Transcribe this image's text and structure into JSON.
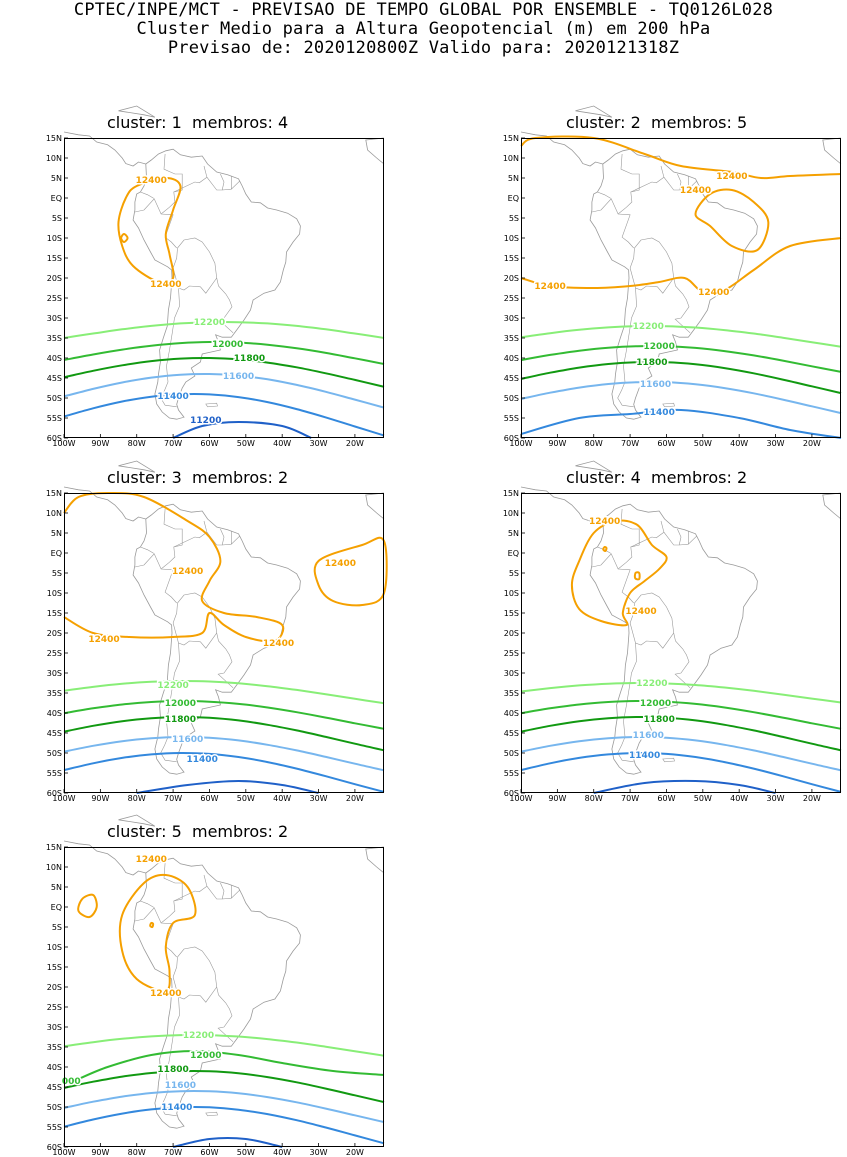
{
  "header": {
    "line1": "CPTEC/INPE/MCT - PREVISAO DE TEMPO GLOBAL POR ENSEMBLE - TQ0126L028",
    "line2": "Cluster Medio para a Altura Geopotencial (m) em 200 hPa",
    "line3": "Previsao de: 2020120800Z    Valido para: 2020121318Z"
  },
  "colors": {
    "c12400": "#f5a000",
    "c12200": "#88ee77",
    "c12000": "#33bb33",
    "c11800": "#119911",
    "c11600": "#77b6ee",
    "c11400": "#3388dd",
    "c11200": "#1f60c8",
    "coast": "#9a9a9a",
    "frame": "#000000"
  },
  "axes": {
    "lat_labels": [
      "15N",
      "10N",
      "5N",
      "EQ",
      "5S",
      "10S",
      "15S",
      "20S",
      "25S",
      "30S",
      "35S",
      "40S",
      "45S",
      "50S",
      "55S",
      "60S"
    ],
    "lon_labels": [
      "100W",
      "90W",
      "80W",
      "70W",
      "60W",
      "50W",
      "40W",
      "30W",
      "20W"
    ]
  },
  "panels": [
    {
      "cluster_label": "cluster:",
      "cluster": "1",
      "members_label": "membros:",
      "members": "4",
      "contours": [
        {
          "value": "12400",
          "color": "c12400",
          "labels": [
            {
              "text": "12400",
              "lon": -76,
              "lat": 4.5
            },
            {
              "text": "12400",
              "lon": -72,
              "lat": -21.5
            }
          ]
        },
        {
          "value": "12200",
          "color": "c12200",
          "labels": [
            {
              "text": "12200",
              "lon": -60,
              "lat": -31
            }
          ]
        },
        {
          "value": "12000",
          "color": "c12000",
          "labels": [
            {
              "text": "12000",
              "lon": -55,
              "lat": -36.5
            }
          ]
        },
        {
          "value": "11800",
          "color": "c11800",
          "labels": [
            {
              "text": "11800",
              "lon": -49,
              "lat": -40
            }
          ]
        },
        {
          "value": "11600",
          "color": "c11600",
          "labels": [
            {
              "text": "11600",
              "lon": -52,
              "lat": -44.5
            }
          ]
        },
        {
          "value": "11400",
          "color": "c11400",
          "labels": [
            {
              "text": "11400",
              "lon": -70,
              "lat": -49.5
            }
          ]
        },
        {
          "value": "11200",
          "color": "c11200",
          "labels": [
            {
              "text": "11200",
              "lon": -61,
              "lat": -55.5
            }
          ]
        }
      ]
    },
    {
      "cluster_label": "cluster:",
      "cluster": "2",
      "members_label": "membros:",
      "members": "5",
      "contours": [
        {
          "value": "12400",
          "color": "c12400",
          "labels": [
            {
              "text": "12400",
              "lon": -42,
              "lat": 5.5
            },
            {
              "text": "12400",
              "lon": -52,
              "lat": 2
            },
            {
              "text": "12400",
              "lon": -92,
              "lat": -22
            },
            {
              "text": "12400",
              "lon": -47,
              "lat": -23.5
            }
          ]
        },
        {
          "value": "12200",
          "color": "c12200",
          "labels": [
            {
              "text": "12200",
              "lon": -65,
              "lat": -32
            }
          ]
        },
        {
          "value": "12000",
          "color": "c12000",
          "labels": [
            {
              "text": "12000",
              "lon": -62,
              "lat": -37
            }
          ]
        },
        {
          "value": "11800",
          "color": "c11800",
          "labels": [
            {
              "text": "11800",
              "lon": -64,
              "lat": -41
            }
          ]
        },
        {
          "value": "11600",
          "color": "c11600",
          "labels": [
            {
              "text": "11600",
              "lon": -63,
              "lat": -46.5
            }
          ]
        },
        {
          "value": "11400",
          "color": "c11400",
          "labels": [
            {
              "text": "11400",
              "lon": -62,
              "lat": -53.5
            }
          ]
        }
      ]
    },
    {
      "cluster_label": "cluster:",
      "cluster": "3",
      "members_label": "membros:",
      "members": "2",
      "contours": [
        {
          "value": "12400",
          "color": "c12400",
          "labels": [
            {
              "text": "12400",
              "lon": -66,
              "lat": -4.5
            },
            {
              "text": "12400",
              "lon": -24,
              "lat": -2.5
            },
            {
              "text": "12400",
              "lon": -89,
              "lat": -21.5
            },
            {
              "text": "12400",
              "lon": -41,
              "lat": -22.5
            }
          ]
        },
        {
          "value": "12200",
          "color": "c12200",
          "labels": [
            {
              "text": "12200",
              "lon": -70,
              "lat": -33
            }
          ]
        },
        {
          "value": "12000",
          "color": "c12000",
          "labels": [
            {
              "text": "12000",
              "lon": -68,
              "lat": -37.5
            }
          ]
        },
        {
          "value": "11800",
          "color": "c11800",
          "labels": [
            {
              "text": "11800",
              "lon": -68,
              "lat": -41.5
            }
          ]
        },
        {
          "value": "11600",
          "color": "c11600",
          "labels": [
            {
              "text": "11600",
              "lon": -66,
              "lat": -46.5
            }
          ]
        },
        {
          "value": "11400",
          "color": "c11400",
          "labels": [
            {
              "text": "11400",
              "lon": -62,
              "lat": -51.5
            }
          ]
        }
      ]
    },
    {
      "cluster_label": "cluster:",
      "cluster": "4",
      "members_label": "membros:",
      "members": "2",
      "contours": [
        {
          "value": "12400",
          "color": "c12400",
          "labels": [
            {
              "text": "12400",
              "lon": -77,
              "lat": 8
            },
            {
              "text": "12400",
              "lon": -67,
              "lat": -14.5
            }
          ]
        },
        {
          "value": "12200",
          "color": "c12200",
          "labels": [
            {
              "text": "12200",
              "lon": -64,
              "lat": -32.5
            }
          ]
        },
        {
          "value": "12000",
          "color": "c12000",
          "labels": [
            {
              "text": "12000",
              "lon": -63,
              "lat": -37.5
            }
          ]
        },
        {
          "value": "11800",
          "color": "c11800",
          "labels": [
            {
              "text": "11800",
              "lon": -62,
              "lat": -41.5
            }
          ]
        },
        {
          "value": "11600",
          "color": "c11600",
          "labels": [
            {
              "text": "11600",
              "lon": -65,
              "lat": -45.5
            }
          ]
        },
        {
          "value": "11400",
          "color": "c11400",
          "labels": [
            {
              "text": "11400",
              "lon": -66,
              "lat": -50.5
            }
          ]
        }
      ]
    },
    {
      "cluster_label": "cluster:",
      "cluster": "5",
      "members_label": "membros:",
      "members": "2",
      "contours": [
        {
          "value": "12400",
          "color": "c12400",
          "labels": [
            {
              "text": "12400",
              "lon": -76,
              "lat": 12
            },
            {
              "text": "12400",
              "lon": -72,
              "lat": -21.5
            }
          ]
        },
        {
          "value": "12200",
          "color": "c12200",
          "labels": [
            {
              "text": "12200",
              "lon": -63,
              "lat": -32
            }
          ]
        },
        {
          "value": "12000",
          "color": "c12000",
          "labels": [
            {
              "text": "12000",
              "lon": -61,
              "lat": -37
            }
          ]
        },
        {
          "value": "11800",
          "color": "c11800",
          "labels": [
            {
              "text": "11800",
              "lon": -70,
              "lat": -40.5
            }
          ]
        },
        {
          "value": "11600",
          "color": "c11600",
          "labels": [
            {
              "text": "11600",
              "lon": -68,
              "lat": -44.5
            }
          ]
        },
        {
          "value": "11400",
          "color": "c11400",
          "labels": [
            {
              "text": "11400",
              "lon": -69,
              "lat": -50
            }
          ]
        },
        {
          "value": "12000",
          "color": "c12000",
          "labels": [
            {
              "text": "000",
              "lon": -98,
              "lat": -43.5
            }
          ]
        }
      ]
    }
  ]
}
